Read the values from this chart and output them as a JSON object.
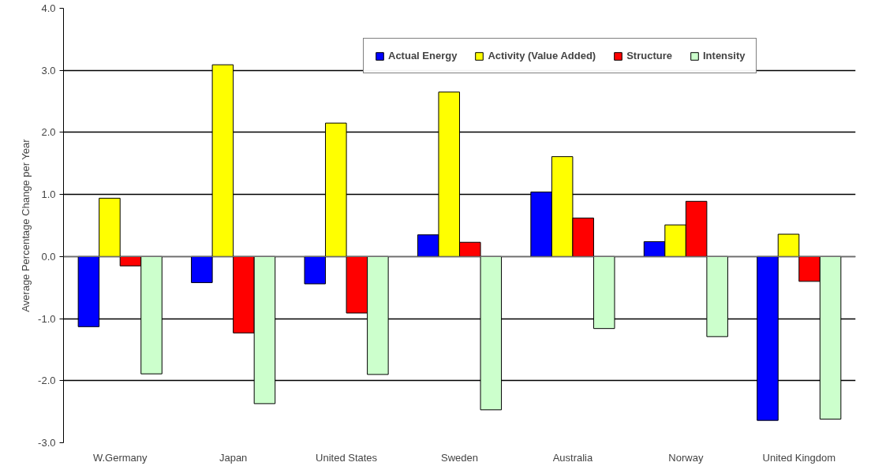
{
  "chart_data": {
    "type": "bar",
    "ylabel": "Average Percentage Change per Year",
    "categories": [
      "W.Germany",
      "Japan",
      "United States",
      "Sweden",
      "Australia",
      "Norway",
      "United Kingdom"
    ],
    "series": [
      {
        "name": "Actual Energy",
        "color": "#0000ff",
        "values": [
          -1.13,
          -0.42,
          -0.44,
          0.35,
          1.04,
          0.24,
          -2.64
        ]
      },
      {
        "name": "Activity (Value Added)",
        "color": "#ffff00",
        "values": [
          0.94,
          3.09,
          2.15,
          2.65,
          1.61,
          0.51,
          0.36
        ]
      },
      {
        "name": "Structure",
        "color": "#ff0000",
        "values": [
          -0.15,
          -1.23,
          -0.91,
          0.23,
          0.62,
          0.89,
          -0.4
        ]
      },
      {
        "name": "Intensity",
        "color": "#ccffcc",
        "values": [
          -1.89,
          -2.37,
          -1.9,
          -2.47,
          -1.16,
          -1.29,
          -2.62
        ]
      }
    ],
    "ylim": [
      -3.0,
      4.0
    ],
    "yticks": [
      {
        "value": -3,
        "label": "-3.0"
      },
      {
        "value": -2,
        "label": "-2.0"
      },
      {
        "value": -1,
        "label": "-1.0"
      },
      {
        "value": 0,
        "label": "0.0"
      },
      {
        "value": 1,
        "label": "1.0"
      },
      {
        "value": 2,
        "label": "2.0"
      },
      {
        "value": 3,
        "label": "3.0"
      },
      {
        "value": 4,
        "label": "4.0"
      }
    ],
    "grid": "y",
    "legend": "top"
  }
}
